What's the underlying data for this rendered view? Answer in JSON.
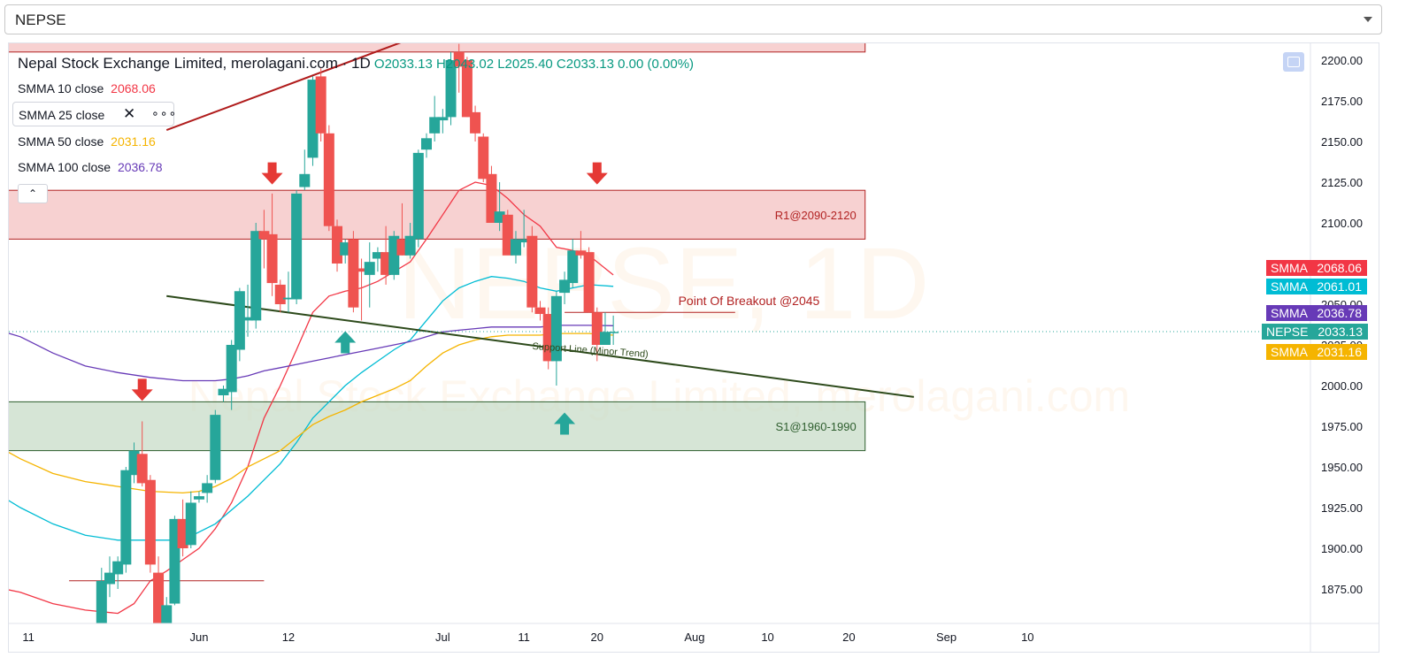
{
  "selector": {
    "value": "NEPSE"
  },
  "legend": {
    "title": "Nepal Stock Exchange Limited, merolagani.com · 1D",
    "ohlc": "O2033.13 H2043.02 L2025.40 C2033.13 0.00 (0.00%)",
    "indicators": [
      {
        "label": "SMMA 10 close",
        "value": "2068.06",
        "color": "#f23645"
      },
      {
        "label": "SMMA 25 close",
        "value": "",
        "color": "#00bcd4"
      },
      {
        "label": "SMMA 50 close",
        "value": "2031.16",
        "color": "#f5b400"
      },
      {
        "label": "SMMA 100 close",
        "value": "2036.78",
        "color": "#673ab7"
      }
    ],
    "close_glyph": "✕",
    "more_glyph": "∘∘∘",
    "collapse_glyph": "⌃"
  },
  "watermark": {
    "symbol": "NEPSE, 1D",
    "name": "Nepal Stock Exchange Limited, merolagani.com"
  },
  "price_tags": [
    {
      "name": "SMMA",
      "value": "2068.06",
      "color": "#f23645"
    },
    {
      "name": "SMMA",
      "value": "2061.01",
      "color": "#00bcd4"
    },
    {
      "name": "SMMA",
      "value": "2036.78",
      "color": "#673ab7"
    },
    {
      "name": "NEPSE",
      "value": "2033.13",
      "color": "#26a69a"
    },
    {
      "name": "SMMA",
      "value": "2031.16",
      "color": "#f5b400"
    }
  ],
  "chart_data": {
    "type": "candlestick",
    "y_ticks": [
      1875,
      1900,
      1925,
      1950,
      1975,
      2000,
      2025,
      2050,
      2075,
      2100,
      2125,
      2150,
      2175,
      2200
    ],
    "ylim": [
      1842,
      2210
    ],
    "x_tick_labels": [
      {
        "day": 1,
        "label": "11"
      },
      {
        "day": 22,
        "label": "Jun"
      },
      {
        "day": 33,
        "label": "12"
      },
      {
        "day": 52,
        "label": "Jul"
      },
      {
        "day": 62,
        "label": "11"
      },
      {
        "day": 71,
        "label": "20"
      },
      {
        "day": 83,
        "label": "Aug"
      },
      {
        "day": 92,
        "label": "10"
      },
      {
        "day": 102,
        "label": "20"
      },
      {
        "day": 114,
        "label": "Sep"
      },
      {
        "day": 124,
        "label": "10"
      }
    ],
    "candles": [
      {
        "d": -4,
        "o": 1850,
        "h": 1870,
        "l": 1840,
        "c": 1868
      },
      {
        "d": -3,
        "o": 1868,
        "h": 1870,
        "l": 1845,
        "c": 1848
      },
      {
        "d": 10,
        "o": 1848,
        "h": 1888,
        "l": 1842,
        "c": 1880
      },
      {
        "d": 11,
        "o": 1878,
        "h": 1895,
        "l": 1870,
        "c": 1885
      },
      {
        "d": 12,
        "o": 1884,
        "h": 1895,
        "l": 1875,
        "c": 1892
      },
      {
        "d": 13,
        "o": 1890,
        "h": 1950,
        "l": 1885,
        "c": 1948
      },
      {
        "d": 14,
        "o": 1945,
        "h": 1965,
        "l": 1940,
        "c": 1960
      },
      {
        "d": 15,
        "o": 1958,
        "h": 1978,
        "l": 1938,
        "c": 1940
      },
      {
        "d": 16,
        "o": 1942,
        "h": 1945,
        "l": 1885,
        "c": 1890
      },
      {
        "d": 17,
        "o": 1885,
        "h": 1895,
        "l": 1850,
        "c": 1852
      },
      {
        "d": 18,
        "o": 1850,
        "h": 1870,
        "l": 1848,
        "c": 1865
      },
      {
        "d": 19,
        "o": 1866,
        "h": 1920,
        "l": 1865,
        "c": 1918
      },
      {
        "d": 20,
        "o": 1918,
        "h": 1930,
        "l": 1895,
        "c": 1900
      },
      {
        "d": 21,
        "o": 1902,
        "h": 1935,
        "l": 1900,
        "c": 1928
      },
      {
        "d": 22,
        "o": 1930,
        "h": 1935,
        "l": 1928,
        "c": 1932
      },
      {
        "d": 23,
        "o": 1934,
        "h": 1945,
        "l": 1928,
        "c": 1940
      },
      {
        "d": 24,
        "o": 1942,
        "h": 1985,
        "l": 1940,
        "c": 1982
      },
      {
        "d": 25,
        "o": 1994,
        "h": 2000,
        "l": 1990,
        "c": 1998
      },
      {
        "d": 26,
        "o": 1996,
        "h": 2028,
        "l": 1985,
        "c": 2025
      },
      {
        "d": 27,
        "o": 2022,
        "h": 2060,
        "l": 2015,
        "c": 2058
      },
      {
        "d": 28,
        "o": 2040,
        "h": 2062,
        "l": 2030,
        "c": 2042
      },
      {
        "d": 29,
        "o": 2040,
        "h": 2100,
        "l": 2035,
        "c": 2095
      },
      {
        "d": 30,
        "o": 2095,
        "h": 2108,
        "l": 2072,
        "c": 2090
      },
      {
        "d": 31,
        "o": 2093,
        "h": 2118,
        "l": 2055,
        "c": 2063
      },
      {
        "d": 32,
        "o": 2062,
        "h": 2065,
        "l": 2045,
        "c": 2050
      },
      {
        "d": 33,
        "o": 2053,
        "h": 2070,
        "l": 2045,
        "c": 2054
      },
      {
        "d": 34,
        "o": 2053,
        "h": 2120,
        "l": 2050,
        "c": 2118
      },
      {
        "d": 35,
        "o": 2122,
        "h": 2145,
        "l": 2120,
        "c": 2130
      },
      {
        "d": 36,
        "o": 2140,
        "h": 2190,
        "l": 2135,
        "c": 2188
      },
      {
        "d": 37,
        "o": 2190,
        "h": 2195,
        "l": 2150,
        "c": 2155
      },
      {
        "d": 38,
        "o": 2155,
        "h": 2160,
        "l": 2095,
        "c": 2098
      },
      {
        "d": 39,
        "o": 2098,
        "h": 2102,
        "l": 2070,
        "c": 2075
      },
      {
        "d": 40,
        "o": 2080,
        "h": 2090,
        "l": 2075,
        "c": 2088
      },
      {
        "d": 41,
        "o": 2090,
        "h": 2095,
        "l": 2045,
        "c": 2048
      },
      {
        "d": 42,
        "o": 2072,
        "h": 2078,
        "l": 2040,
        "c": 2070
      },
      {
        "d": 43,
        "o": 2068,
        "h": 2088,
        "l": 2048,
        "c": 2076
      },
      {
        "d": 44,
        "o": 2078,
        "h": 2085,
        "l": 2070,
        "c": 2082
      },
      {
        "d": 45,
        "o": 2082,
        "h": 2098,
        "l": 2062,
        "c": 2068
      },
      {
        "d": 46,
        "o": 2068,
        "h": 2095,
        "l": 2065,
        "c": 2092
      },
      {
        "d": 47,
        "o": 2090,
        "h": 2112,
        "l": 2080,
        "c": 2080
      },
      {
        "d": 48,
        "o": 2080,
        "h": 2100,
        "l": 2078,
        "c": 2092
      },
      {
        "d": 49,
        "o": 2090,
        "h": 2145,
        "l": 2085,
        "c": 2143
      },
      {
        "d": 50,
        "o": 2145,
        "h": 2155,
        "l": 2140,
        "c": 2152
      },
      {
        "d": 51,
        "o": 2155,
        "h": 2178,
        "l": 2150,
        "c": 2165
      },
      {
        "d": 52,
        "o": 2163,
        "h": 2170,
        "l": 2155,
        "c": 2165
      },
      {
        "d": 53,
        "o": 2165,
        "h": 2205,
        "l": 2160,
        "c": 2200
      },
      {
        "d": 54,
        "o": 2205,
        "h": 2210,
        "l": 2180,
        "c": 2196
      },
      {
        "d": 55,
        "o": 2200,
        "h": 2202,
        "l": 2165,
        "c": 2165
      },
      {
        "d": 56,
        "o": 2168,
        "h": 2172,
        "l": 2150,
        "c": 2155
      },
      {
        "d": 57,
        "o": 2153,
        "h": 2155,
        "l": 2125,
        "c": 2127
      },
      {
        "d": 58,
        "o": 2130,
        "h": 2135,
        "l": 2100,
        "c": 2100
      },
      {
        "d": 59,
        "o": 2100,
        "h": 2125,
        "l": 2095,
        "c": 2107
      },
      {
        "d": 60,
        "o": 2105,
        "h": 2108,
        "l": 2082,
        "c": 2080
      },
      {
        "d": 61,
        "o": 2080,
        "h": 2095,
        "l": 2075,
        "c": 2090
      },
      {
        "d": 62,
        "o": 2088,
        "h": 2108,
        "l": 2085,
        "c": 2090
      },
      {
        "d": 63,
        "o": 2092,
        "h": 2098,
        "l": 2045,
        "c": 2048
      },
      {
        "d": 64,
        "o": 2048,
        "h": 2052,
        "l": 2040,
        "c": 2044
      },
      {
        "d": 65,
        "o": 2044,
        "h": 2048,
        "l": 2010,
        "c": 2015
      },
      {
        "d": 66,
        "o": 2015,
        "h": 2058,
        "l": 2000,
        "c": 2055
      },
      {
        "d": 67,
        "o": 2057,
        "h": 2070,
        "l": 2050,
        "c": 2065
      },
      {
        "d": 68,
        "o": 2063,
        "h": 2090,
        "l": 2060,
        "c": 2083
      },
      {
        "d": 69,
        "o": 2083,
        "h": 2095,
        "l": 2078,
        "c": 2080
      },
      {
        "d": 70,
        "o": 2082,
        "h": 2085,
        "l": 2045,
        "c": 2045
      },
      {
        "d": 71,
        "o": 2045,
        "h": 2048,
        "l": 2015,
        "c": 2025
      },
      {
        "d": 72,
        "o": 2025,
        "h": 2045,
        "l": 2025,
        "c": 2033
      },
      {
        "d": 73,
        "o": 2033,
        "h": 2043,
        "l": 2025,
        "c": 2033
      }
    ],
    "series": [
      {
        "name": "SMMA 10 close",
        "color": "#f23645",
        "points": [
          [
            -4,
            1877
          ],
          [
            0,
            1873
          ],
          [
            4,
            1866
          ],
          [
            8,
            1862
          ],
          [
            12,
            1860
          ],
          [
            14,
            1866
          ],
          [
            16,
            1880
          ],
          [
            18,
            1886
          ],
          [
            20,
            1893
          ],
          [
            22,
            1900
          ],
          [
            24,
            1912
          ],
          [
            26,
            1928
          ],
          [
            28,
            1950
          ],
          [
            30,
            1980
          ],
          [
            32,
            2000
          ],
          [
            34,
            2022
          ],
          [
            36,
            2045
          ],
          [
            38,
            2055
          ],
          [
            40,
            2058
          ],
          [
            42,
            2060
          ],
          [
            44,
            2064
          ],
          [
            46,
            2070
          ],
          [
            48,
            2076
          ],
          [
            50,
            2090
          ],
          [
            52,
            2105
          ],
          [
            54,
            2120
          ],
          [
            56,
            2125
          ],
          [
            58,
            2123
          ],
          [
            60,
            2115
          ],
          [
            62,
            2105
          ],
          [
            64,
            2098
          ],
          [
            66,
            2085
          ],
          [
            68,
            2083
          ],
          [
            70,
            2080
          ],
          [
            73,
            2068
          ]
        ]
      },
      {
        "name": "SMMA 25 close",
        "color": "#00bcd4",
        "points": [
          [
            -4,
            1937
          ],
          [
            0,
            1925
          ],
          [
            4,
            1915
          ],
          [
            8,
            1908
          ],
          [
            12,
            1905
          ],
          [
            16,
            1905
          ],
          [
            20,
            1905
          ],
          [
            24,
            1915
          ],
          [
            28,
            1932
          ],
          [
            30,
            1942
          ],
          [
            32,
            1952
          ],
          [
            34,
            1965
          ],
          [
            36,
            1980
          ],
          [
            38,
            1990
          ],
          [
            40,
            2000
          ],
          [
            42,
            2008
          ],
          [
            44,
            2015
          ],
          [
            46,
            2022
          ],
          [
            48,
            2028
          ],
          [
            50,
            2040
          ],
          [
            52,
            2052
          ],
          [
            54,
            2060
          ],
          [
            56,
            2064
          ],
          [
            58,
            2067
          ],
          [
            60,
            2066
          ],
          [
            62,
            2064
          ],
          [
            64,
            2060
          ],
          [
            66,
            2058
          ],
          [
            68,
            2060
          ],
          [
            70,
            2062
          ],
          [
            73,
            2061
          ]
        ]
      },
      {
        "name": "SMMA 50 close",
        "color": "#f5b400",
        "points": [
          [
            -4,
            1966
          ],
          [
            0,
            1955
          ],
          [
            4,
            1946
          ],
          [
            8,
            1941
          ],
          [
            12,
            1938
          ],
          [
            16,
            1935
          ],
          [
            20,
            1934
          ],
          [
            22,
            1935
          ],
          [
            24,
            1938
          ],
          [
            26,
            1943
          ],
          [
            28,
            1950
          ],
          [
            30,
            1955
          ],
          [
            32,
            1960
          ],
          [
            34,
            1968
          ],
          [
            36,
            1976
          ],
          [
            38,
            1981
          ],
          [
            40,
            1985
          ],
          [
            42,
            1990
          ],
          [
            44,
            1994
          ],
          [
            46,
            1998
          ],
          [
            48,
            2003
          ],
          [
            50,
            2012
          ],
          [
            52,
            2020
          ],
          [
            54,
            2025
          ],
          [
            56,
            2028
          ],
          [
            58,
            2030
          ],
          [
            60,
            2031
          ],
          [
            62,
            2031
          ],
          [
            64,
            2031
          ],
          [
            66,
            2032
          ],
          [
            68,
            2032
          ],
          [
            70,
            2032
          ],
          [
            73,
            2031
          ]
        ]
      },
      {
        "name": "SMMA 100 close",
        "color": "#673ab7",
        "points": [
          [
            -4,
            2036
          ],
          [
            -2,
            2033
          ],
          [
            0,
            2030
          ],
          [
            4,
            2020
          ],
          [
            8,
            2012
          ],
          [
            12,
            2008
          ],
          [
            16,
            2005
          ],
          [
            20,
            2003
          ],
          [
            24,
            2003
          ],
          [
            26,
            2004
          ],
          [
            28,
            2006
          ],
          [
            30,
            2009
          ],
          [
            32,
            2011
          ],
          [
            34,
            2013
          ],
          [
            36,
            2015
          ],
          [
            38,
            2017
          ],
          [
            40,
            2019
          ],
          [
            42,
            2021
          ],
          [
            44,
            2023
          ],
          [
            46,
            2025
          ],
          [
            48,
            2027
          ],
          [
            50,
            2030
          ],
          [
            52,
            2033
          ],
          [
            54,
            2034
          ],
          [
            56,
            2035
          ],
          [
            58,
            2036
          ],
          [
            60,
            2036
          ],
          [
            62,
            2036
          ],
          [
            64,
            2036
          ],
          [
            66,
            2037
          ],
          [
            68,
            2037
          ],
          [
            70,
            2037
          ],
          [
            73,
            2036.78
          ]
        ]
      }
    ],
    "zones": [
      {
        "label": "R1@2090-2120",
        "y1": 2090,
        "y2": 2120,
        "d1": -4,
        "d2": 104,
        "fill": "#f4c2c2",
        "stroke": "#b22222",
        "text_color": "#b22222"
      },
      {
        "label": "S1@1960-1990",
        "y1": 1960,
        "y2": 1990,
        "d1": -4,
        "d2": 104,
        "fill": "#c8dcc8",
        "stroke": "#2e5e2e",
        "text_color": "#2e5e2e"
      },
      {
        "label": "",
        "y1": 2205,
        "y2": 2240,
        "d1": -4,
        "d2": 104,
        "fill": "#f4c2c2",
        "stroke": "#b22222",
        "text_color": "#b22222"
      }
    ],
    "trend_lines": [
      {
        "d1": 18,
        "y1": 2157,
        "d2": 48,
        "y2": 2213,
        "color": "#b01c1c",
        "width": 2
      },
      {
        "d1": 18,
        "y1": 2055,
        "d2": 110,
        "y2": 1993,
        "color": "#2d4a1b",
        "width": 2
      },
      {
        "d1": 6,
        "y1": 1880,
        "d2": 30,
        "y2": 1880,
        "color": "#b22222",
        "width": 1
      },
      {
        "d1": 67,
        "y1": 2045,
        "d2": 88,
        "y2": 2045,
        "color": "#b22222",
        "width": 1
      }
    ],
    "annotations": [
      {
        "text": "Point Of Breakout @2045",
        "d": 81,
        "y": 2045,
        "color": "#b22222"
      },
      {
        "text": "Support Line (Minor Trend)",
        "d": 63,
        "y": 2018,
        "color": "#2d4a1b"
      }
    ],
    "arrows": [
      {
        "dir": "down",
        "d": 15,
        "y": 1990,
        "color": "#e53935"
      },
      {
        "dir": "down",
        "d": 31,
        "y": 2123,
        "color": "#e53935"
      },
      {
        "dir": "down",
        "d": 71,
        "y": 2123,
        "color": "#e53935"
      },
      {
        "dir": "up",
        "d": 40,
        "y": 2034,
        "color": "#26a69a"
      },
      {
        "dir": "up",
        "d": 67,
        "y": 1984,
        "color": "#26a69a"
      }
    ],
    "last_price": 2033.13
  }
}
